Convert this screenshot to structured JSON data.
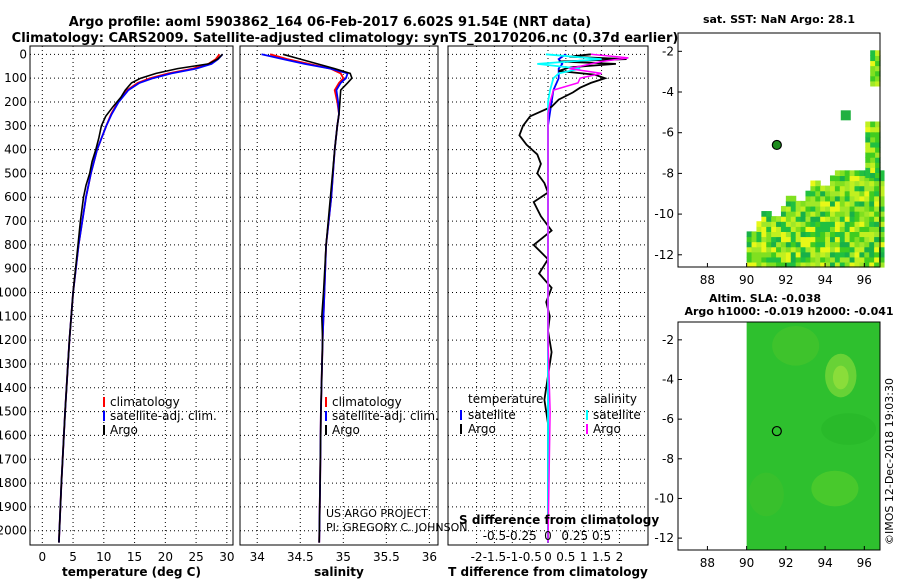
{
  "title": {
    "line1": "Argo profile: aoml 5903862_164 06-Feb-2017 6.602S 91.54E (NRT data)",
    "line2": "Climatology: CARS2009. Satellite-adjusted climatology: synTS_20170206.nc (0.37d earlier)"
  },
  "depth_ticks": [
    "0",
    "100",
    "200",
    "300",
    "400",
    "500",
    "600",
    "700",
    "800",
    "900",
    "1000",
    "1100",
    "1200",
    "1300",
    "1400",
    "1500",
    "1600",
    "1700",
    "1800",
    "1900",
    "2000"
  ],
  "colors": {
    "climatology": "#ff0000",
    "satellite": "#0000ff",
    "argo": "#000000",
    "sat_salinity": "#00ffff",
    "argo_salinity": "#ff00ff"
  },
  "chart_data": [
    {
      "type": "line",
      "name": "temperature",
      "xlabel": "temperature (deg C)",
      "ylabel": "depth",
      "xlim": [
        -2,
        31
      ],
      "ylim": [
        2060,
        -35
      ],
      "xticks": [
        "0",
        "5",
        "10",
        "15",
        "20",
        "25",
        "30"
      ],
      "legend": [
        "climatology",
        "satellite-adj. clim.",
        "Argo"
      ],
      "series": [
        {
          "name": "climatology",
          "depth": [
            0,
            20,
            40,
            60,
            80,
            100,
            120,
            150,
            200,
            250,
            300,
            400,
            500,
            600,
            800,
            1000,
            1200,
            1500,
            1800,
            2050
          ],
          "values": [
            28.8,
            28.2,
            27,
            24.5,
            20.5,
            17.5,
            15.5,
            13.8,
            12.3,
            11.2,
            10.4,
            8.9,
            7.9,
            7.1,
            5.9,
            5.0,
            4.4,
            3.7,
            3.1,
            2.7
          ]
        },
        {
          "name": "satellite-adj. clim.",
          "depth": [
            0,
            20,
            40,
            60,
            80,
            100,
            120,
            150,
            200,
            250,
            300,
            400,
            500,
            600,
            800,
            1000,
            1200,
            1500,
            1800,
            2050
          ],
          "values": [
            29.3,
            28.6,
            27.5,
            25,
            21,
            18,
            15.8,
            14,
            12.4,
            11.3,
            10.4,
            8.9,
            7.9,
            7.1,
            5.9,
            5.0,
            4.4,
            3.7,
            3.1,
            2.7
          ]
        },
        {
          "name": "Argo",
          "depth": [
            0,
            20,
            40,
            60,
            80,
            100,
            120,
            150,
            180,
            220,
            260,
            300,
            350,
            400,
            450,
            500,
            550,
            600,
            700,
            800,
            1000,
            1200,
            1500,
            1800,
            2050
          ],
          "values": [
            29.3,
            28.5,
            27,
            22,
            18.5,
            16,
            14.5,
            13.5,
            12.8,
            11.5,
            10.3,
            9.6,
            9.2,
            8.7,
            8.1,
            7.7,
            7.1,
            6.7,
            6.2,
            5.8,
            5.0,
            4.4,
            3.7,
            3.1,
            2.7
          ]
        }
      ]
    },
    {
      "type": "line",
      "name": "salinity",
      "xlabel": "salinity",
      "ylabel": "depth",
      "xlim": [
        33.8,
        36.1
      ],
      "ylim": [
        2060,
        -35
      ],
      "xticks": [
        "34",
        "34.5",
        "35",
        "35.5",
        "36"
      ],
      "legend": [
        "climatology",
        "satellite-adj. clim.",
        "Argo"
      ],
      "series": [
        {
          "name": "climatology",
          "depth": [
            0,
            20,
            40,
            60,
            80,
            100,
            120,
            150,
            200,
            250,
            300,
            400,
            600,
            800,
            1000,
            1200,
            1500,
            1800,
            2050
          ],
          "values": [
            34.15,
            34.35,
            34.6,
            34.85,
            34.97,
            35.0,
            34.95,
            34.9,
            34.93,
            34.95,
            34.93,
            34.9,
            34.86,
            34.8,
            34.78,
            34.76,
            34.74,
            34.73,
            34.72
          ]
        },
        {
          "name": "satellite-adj. clim.",
          "depth": [
            0,
            20,
            40,
            60,
            80,
            100,
            120,
            150,
            200,
            250,
            300,
            400,
            600,
            800,
            1000,
            1200,
            1500,
            1800,
            2050
          ],
          "values": [
            34.05,
            34.3,
            34.55,
            34.85,
            35.05,
            35.03,
            34.97,
            34.92,
            34.94,
            34.95,
            34.93,
            34.9,
            34.86,
            34.8,
            34.78,
            34.76,
            34.74,
            34.73,
            34.72
          ]
        },
        {
          "name": "Argo",
          "depth": [
            0,
            20,
            40,
            60,
            80,
            100,
            120,
            150,
            200,
            250,
            300,
            400,
            600,
            800,
            1000,
            1100,
            1200,
            1500,
            1800,
            2050
          ],
          "values": [
            34.3,
            34.5,
            34.7,
            34.9,
            35.08,
            35.1,
            35.05,
            34.97,
            34.96,
            34.95,
            34.93,
            34.9,
            34.85,
            34.8,
            34.77,
            34.75,
            34.76,
            34.74,
            34.73,
            34.72
          ]
        }
      ]
    },
    {
      "type": "line",
      "name": "differences",
      "xlabel": "T difference from climatology",
      "x2label": "S difference from climatology",
      "xlim": [
        -2.8,
        2.8
      ],
      "ylim": [
        2060,
        -35
      ],
      "xticks": [
        "-2",
        "-1.5",
        "-1",
        "-0.5",
        "0",
        "0.5",
        "1",
        "1.5",
        "2"
      ],
      "x2ticks": [
        "-0.5",
        "-0.25",
        "0",
        "0.25",
        "0.5"
      ],
      "legend_temperature": {
        "title": "temperature",
        "items": [
          "satellite",
          "Argo"
        ]
      },
      "legend_salinity": {
        "title": "salinity",
        "items": [
          "satellite",
          "Argo"
        ]
      },
      "series": [
        {
          "name": "T satellite",
          "depth": [
            0,
            20,
            40,
            60,
            80,
            100,
            150,
            200,
            300,
            500,
            800,
            1200,
            1600,
            2050
          ],
          "values": [
            0.5,
            0.3,
            0.4,
            0.3,
            0.3,
            0.3,
            0.15,
            0.1,
            0,
            0,
            0,
            0,
            0,
            0
          ]
        },
        {
          "name": "T Argo",
          "depth": [
            0,
            10,
            20,
            30,
            40,
            55,
            70,
            85,
            100,
            120,
            140,
            160,
            190,
            220,
            260,
            300,
            340,
            380,
            420,
            460,
            500,
            540,
            580,
            620,
            680,
            740,
            800,
            860,
            920,
            980,
            1040,
            1100,
            1160,
            1250,
            1350,
            1450,
            1550,
            1650,
            1800,
            1950,
            2050
          ],
          "values": [
            1.2,
            0.6,
            2.2,
            0.3,
            1.9,
            0.6,
            0.3,
            1.3,
            1.6,
            1.2,
            0.9,
            0.7,
            0.3,
            0.1,
            -0.5,
            -0.7,
            -0.8,
            -0.6,
            -0.3,
            -0.2,
            -0.3,
            -0.1,
            0,
            -0.4,
            -0.2,
            0.1,
            -0.4,
            0,
            -0.25,
            0.1,
            -0.05,
            0.05,
            0,
            0.1,
            0,
            -0.1,
            0,
            0,
            0,
            0,
            0
          ]
        },
        {
          "name": "S satellite",
          "depth": [
            0,
            20,
            40,
            60,
            80,
            100,
            150,
            200,
            300,
            500,
            800,
            1200,
            1600,
            2050
          ],
          "values": [
            -0.02,
            0.5,
            -0.1,
            0.3,
            0.1,
            0.05,
            0.02,
            0,
            0,
            0,
            0,
            0,
            0,
            0
          ]
        },
        {
          "name": "S Argo",
          "depth": [
            0,
            15,
            30,
            45,
            60,
            80,
            100,
            120,
            150,
            200,
            250,
            300,
            500,
            800,
            1200,
            1500,
            2050
          ],
          "values": [
            0.4,
            0.75,
            0.5,
            0.35,
            0.2,
            0.5,
            0.3,
            0.28,
            0.05,
            0.02,
            0,
            0,
            0,
            0,
            0,
            0.02,
            0
          ]
        }
      ]
    }
  ],
  "maps": {
    "sst": {
      "title": "sat. SST: NaN Argo: 28.1",
      "yticks": [
        "-2",
        "-4",
        "-6",
        "-8",
        "-10",
        "-12"
      ],
      "xticks": [
        "88",
        "90",
        "92",
        "94",
        "96"
      ],
      "xlim": [
        86.5,
        96.8
      ],
      "ylim": [
        -12.6,
        -1.1
      ],
      "profile": {
        "lon": 91.54,
        "lat": -6.602
      }
    },
    "sla": {
      "title1": "Altim. SLA: -0.038",
      "title2": "Argo h1000: -0.019 h2000: -0.041",
      "yticks": [
        "-2",
        "-4",
        "-6",
        "-8",
        "-10",
        "-12"
      ],
      "xticks": [
        "88",
        "90",
        "92",
        "94",
        "96"
      ],
      "xlim": [
        86.5,
        96.8
      ],
      "ylim": [
        -12.6,
        -1.1
      ],
      "profile": {
        "lon": 91.54,
        "lat": -6.602
      }
    }
  },
  "credit": {
    "line1": "US ARGO PROJECT",
    "line2": "PI: GREGORY C. JOHNSON"
  },
  "imos_stamp": "©IMOS 12-Dec-2018 19:03:30"
}
